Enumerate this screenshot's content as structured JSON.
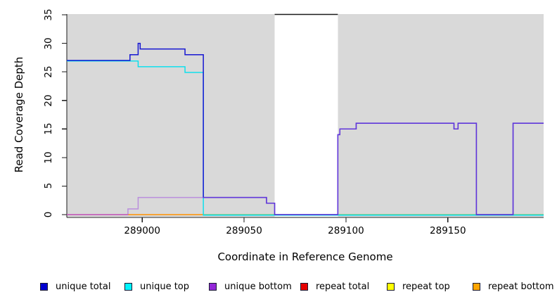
{
  "figure": {
    "panel_color": "#d9d9d9",
    "axis_color": "#1a1a1a",
    "gap_top_bar_color": "#1a1a1a",
    "background": "#ffffff"
  },
  "chart_data": {
    "type": "line",
    "title": "",
    "xlabel": "Coordinate in Reference Genome",
    "ylabel": "Read Coverage Depth",
    "xlim": [
      288963,
      289197
    ],
    "ylim": [
      0,
      35
    ],
    "x_ticks": [
      {
        "value": 289000,
        "label": "289000"
      },
      {
        "value": 289050,
        "label": "289050"
      },
      {
        "value": 289100,
        "label": "289100"
      },
      {
        "value": 289150,
        "label": "289150"
      }
    ],
    "y_ticks": [
      {
        "value": 0,
        "label": "0"
      },
      {
        "value": 5,
        "label": "5"
      },
      {
        "value": 10,
        "label": "10"
      },
      {
        "value": 15,
        "label": "15"
      },
      {
        "value": 20,
        "label": "20"
      },
      {
        "value": 25,
        "label": "25"
      },
      {
        "value": 30,
        "label": "30"
      },
      {
        "value": 35,
        "label": "35"
      }
    ],
    "grid": false,
    "legend_position": "bottom",
    "coverage_panels": [
      [
        288963,
        289065
      ],
      [
        289096,
        289197
      ]
    ],
    "gap_region": [
      289065,
      289096
    ],
    "series": [
      {
        "name": "unique total",
        "steps": [
          [
            288963,
            27
          ],
          [
            288994,
            28
          ],
          [
            288998,
            30
          ],
          [
            288999,
            29
          ],
          [
            289021,
            28
          ],
          [
            289030,
            3
          ],
          [
            289061,
            2
          ],
          [
            289065,
            0
          ],
          [
            289096,
            14
          ],
          [
            289097,
            15
          ],
          [
            289105,
            16
          ],
          [
            289153,
            15
          ],
          [
            289155,
            16
          ],
          [
            289164,
            0
          ],
          [
            289182,
            16
          ],
          [
            289197,
            16
          ]
        ]
      },
      {
        "name": "unique top",
        "steps": [
          [
            288963,
            27
          ],
          [
            288998,
            26
          ],
          [
            289021,
            25
          ],
          [
            289030,
            0
          ],
          [
            289197,
            0
          ]
        ]
      },
      {
        "name": "unique bottom",
        "steps": [
          [
            288963,
            0
          ],
          [
            288993,
            1
          ],
          [
            288998,
            3
          ],
          [
            289061,
            2
          ],
          [
            289065,
            0
          ],
          [
            289096,
            14
          ],
          [
            289097,
            15
          ],
          [
            289105,
            16
          ],
          [
            289153,
            15
          ],
          [
            289155,
            16
          ],
          [
            289164,
            0
          ],
          [
            289182,
            16
          ],
          [
            289197,
            16
          ]
        ]
      },
      {
        "name": "repeat total",
        "steps": [
          [
            288963,
            0
          ],
          [
            289197,
            0
          ]
        ]
      },
      {
        "name": "repeat top",
        "steps": [
          [
            288963,
            0
          ],
          [
            289197,
            0
          ]
        ]
      },
      {
        "name": "repeat bottom",
        "steps": [
          [
            288963,
            0
          ],
          [
            289197,
            0
          ]
        ]
      }
    ]
  },
  "render": {
    "zero_segments": [
      {
        "from": 288963,
        "to": 288993,
        "color": "#e4648f"
      },
      {
        "from": 288993,
        "to": 289030,
        "color": "#ff9100"
      },
      {
        "from": 289030,
        "to": 289197,
        "color": "#7cc87c"
      }
    ],
    "draw": [
      {
        "series": "unique top",
        "color": "#00e0ee",
        "width": 1.4,
        "dy": 0.8,
        "opacity": 1
      },
      {
        "series": "unique total",
        "color": "#1616d2",
        "width": 1.5,
        "dy": 0,
        "opacity": 1
      },
      {
        "series": "unique bottom",
        "color": "#a050e0",
        "width": 1.5,
        "dy": 0,
        "opacity": 0.55
      }
    ]
  },
  "legend": {
    "items": [
      {
        "label": "unique total",
        "color": "#0000d0"
      },
      {
        "label": "unique top",
        "color": "#00f5ff"
      },
      {
        "label": "unique bottom",
        "color": "#9327d8"
      },
      {
        "label": "repeat total",
        "color": "#e60000"
      },
      {
        "label": "repeat top",
        "color": "#ffff00"
      },
      {
        "label": "repeat bottom",
        "color": "#ffa500"
      }
    ]
  }
}
